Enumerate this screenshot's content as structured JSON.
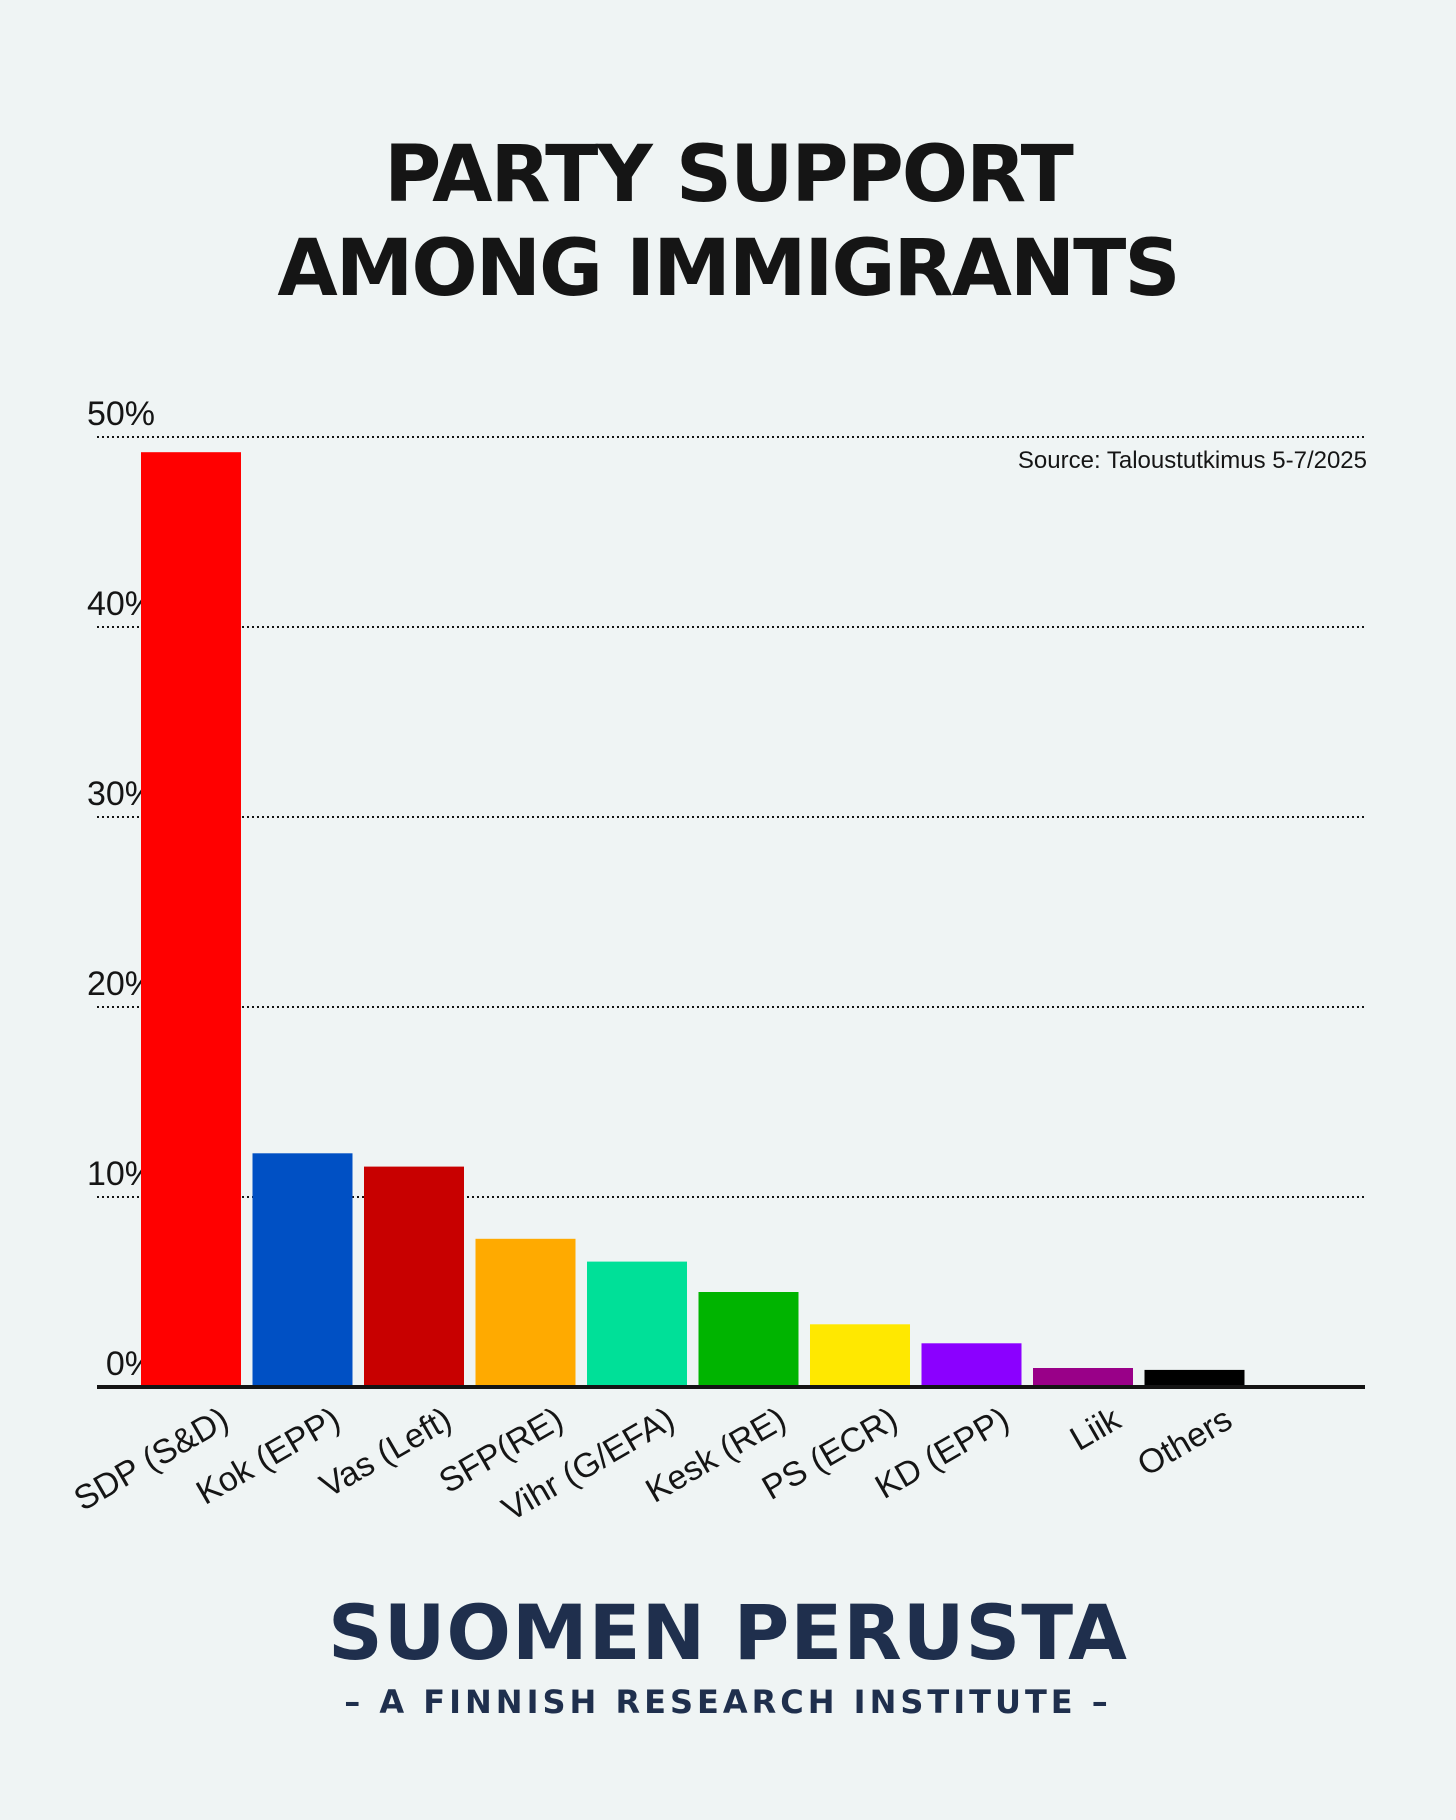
{
  "title": {
    "line1": "PARTY SUPPORT",
    "line2": "AMONG IMMIGRANTS"
  },
  "source": "Source: Taloustutkimus 5-7/2025",
  "brand": {
    "name": "SUOMEN PERUSTA",
    "tagline": "– A FINNISH RESEARCH INSTITUTE –"
  },
  "chart_data": {
    "type": "bar",
    "title": "PARTY SUPPORT AMONG IMMIGRANTS",
    "xlabel": "",
    "ylabel": "",
    "ylim": [
      0,
      50
    ],
    "yticks": [
      0,
      10,
      20,
      30,
      40,
      50
    ],
    "ytick_labels": [
      "0%",
      "10%",
      "20%",
      "30%",
      "40%",
      "50%"
    ],
    "grid": true,
    "categories": [
      "SDP (S&D)",
      "Kok (EPP)",
      "Vas (Left)",
      "SFP(RE)",
      "Vihr (G/EFA)",
      "Kesk (RE)",
      "PS (ECR)",
      "KD (EPP)",
      "Liik",
      "Others"
    ],
    "values": [
      49.2,
      12.3,
      11.6,
      7.8,
      6.6,
      5.0,
      3.3,
      2.3,
      1.0,
      0.9
    ],
    "colors": [
      "#ff0000",
      "#0050c4",
      "#c80000",
      "#ffaa00",
      "#00e098",
      "#00b400",
      "#ffe800",
      "#8b00ff",
      "#990088",
      "#000000"
    ]
  }
}
